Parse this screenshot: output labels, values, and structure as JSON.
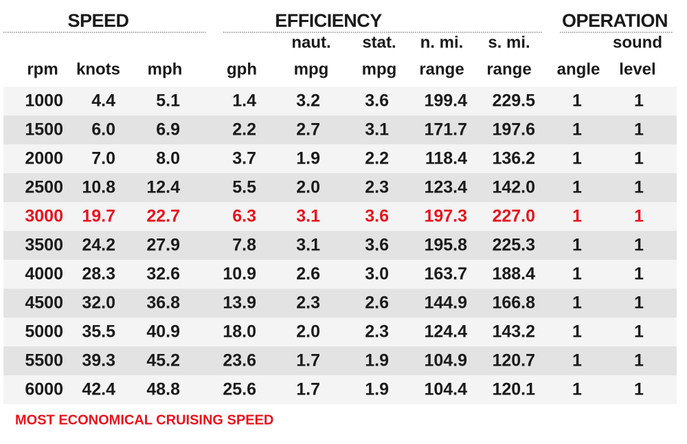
{
  "groups": [
    {
      "label": "SPEED"
    },
    {
      "label": "EFFICIENCY"
    },
    {
      "label": "OPERATION"
    }
  ],
  "columns": [
    {
      "label": "rpm"
    },
    {
      "label": "knots"
    },
    {
      "label": "mph"
    },
    {
      "label": "gph"
    },
    {
      "top": "naut.",
      "label": "mpg"
    },
    {
      "top": "stat.",
      "label": "mpg"
    },
    {
      "top": "n. mi.",
      "label": "range"
    },
    {
      "top": "s. mi.",
      "label": "range"
    },
    {
      "label": "angle"
    },
    {
      "top": "sound",
      "label": "level"
    }
  ],
  "rows": [
    [
      "1000",
      "4.4",
      "5.1",
      "1.4",
      "3.2",
      "3.6",
      "199.4",
      "229.5",
      "1",
      "1"
    ],
    [
      "1500",
      "6.0",
      "6.9",
      "2.2",
      "2.7",
      "3.1",
      "171.7",
      "197.6",
      "1",
      "1"
    ],
    [
      "2000",
      "7.0",
      "8.0",
      "3.7",
      "1.9",
      "2.2",
      "118.4",
      "136.2",
      "1",
      "1"
    ],
    [
      "2500",
      "10.8",
      "12.4",
      "5.5",
      "2.0",
      "2.3",
      "123.4",
      "142.0",
      "1",
      "1"
    ],
    [
      "3000",
      "19.7",
      "22.7",
      "6.3",
      "3.1",
      "3.6",
      "197.3",
      "227.0",
      "1",
      "1"
    ],
    [
      "3500",
      "24.2",
      "27.9",
      "7.8",
      "3.1",
      "3.6",
      "195.8",
      "225.3",
      "1",
      "1"
    ],
    [
      "4000",
      "28.3",
      "32.6",
      "10.9",
      "2.6",
      "3.0",
      "163.7",
      "188.4",
      "1",
      "1"
    ],
    [
      "4500",
      "32.0",
      "36.8",
      "13.9",
      "2.3",
      "2.6",
      "144.9",
      "166.8",
      "1",
      "1"
    ],
    [
      "5000",
      "35.5",
      "40.9",
      "18.0",
      "2.0",
      "2.3",
      "124.4",
      "143.2",
      "1",
      "1"
    ],
    [
      "5500",
      "39.3",
      "45.2",
      "23.6",
      "1.7",
      "1.9",
      "104.9",
      "120.7",
      "1",
      "1"
    ],
    [
      "6000",
      "42.4",
      "48.8",
      "25.6",
      "1.7",
      "1.9",
      "104.4",
      "120.1",
      "1",
      "1"
    ]
  ],
  "highlight_row": 4,
  "highlight_color": "#e8141c",
  "footnote": "MOST ECONOMICAL CRUISING SPEED"
}
